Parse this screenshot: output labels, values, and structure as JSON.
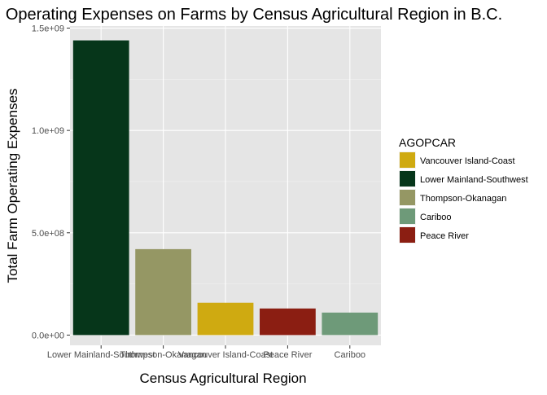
{
  "chart_data": {
    "type": "bar",
    "title": "Operating Expenses on Farms by Census Agricultural Region in B.C.",
    "xlabel": "Census Agricultural Region",
    "ylabel": "Total Farm Operating Expenses",
    "categories": [
      "Lower Mainland-Southwest",
      "Thompson-Okanagan",
      "Vancouver Island-Coast",
      "Peace River",
      "Cariboo"
    ],
    "values": [
      1440000000,
      420000000,
      158000000,
      130000000,
      110000000
    ],
    "bar_colors": [
      "#06361a",
      "#959764",
      "#cfaa11",
      "#8b1e12",
      "#6e9a79"
    ],
    "ylim": [
      -50000000,
      1510000000
    ],
    "yticks": [
      0,
      500000000,
      1000000000,
      1500000000
    ],
    "ytick_labels": [
      "0.0e+00",
      "5.0e+08",
      "1.0e+09",
      "1.5e+09"
    ],
    "grid": true,
    "panel_background": "#e5e5e5",
    "legend": {
      "title": "AGOPCAR",
      "placement": "right",
      "entries": [
        {
          "label": "Vancouver Island-Coast",
          "color": "#cfaa11"
        },
        {
          "label": "Lower Mainland-Southwest",
          "color": "#06361a"
        },
        {
          "label": "Thompson-Okanagan",
          "color": "#959764"
        },
        {
          "label": "Cariboo",
          "color": "#6e9a79"
        },
        {
          "label": "Peace River",
          "color": "#8b1e12"
        }
      ]
    }
  }
}
